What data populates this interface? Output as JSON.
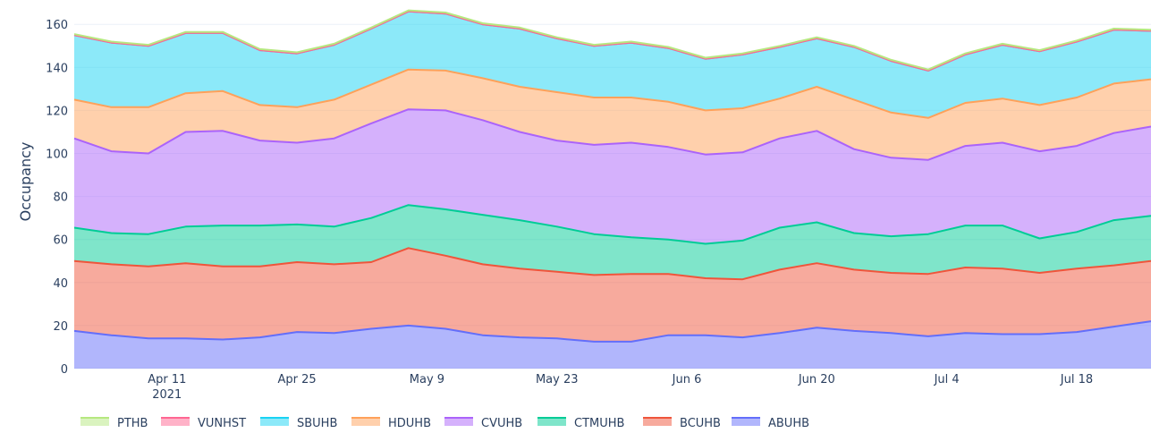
{
  "chart_data": {
    "type": "area",
    "stacked": true,
    "title": "",
    "xlabel": "",
    "ylabel": "Occupancy",
    "ylim": [
      0,
      168
    ],
    "xlim": [
      "2021-04-01",
      "2021-07-26"
    ],
    "yticks": [
      0,
      20,
      40,
      60,
      80,
      100,
      120,
      140,
      160
    ],
    "xticks": [
      {
        "date": "2021-04-11",
        "label": "Apr 11",
        "sublabel": "2021"
      },
      {
        "date": "2021-04-25",
        "label": "Apr 25"
      },
      {
        "date": "2021-05-09",
        "label": "May 9"
      },
      {
        "date": "2021-05-23",
        "label": "May 23"
      },
      {
        "date": "2021-06-06",
        "label": "Jun 6"
      },
      {
        "date": "2021-06-20",
        "label": "Jun 20"
      },
      {
        "date": "2021-07-04",
        "label": "Jul 4"
      },
      {
        "date": "2021-07-18",
        "label": "Jul 18"
      }
    ],
    "grid": true,
    "legend_position": "bottom",
    "x": [
      "2021-04-01",
      "2021-04-05",
      "2021-04-09",
      "2021-04-13",
      "2021-04-17",
      "2021-04-21",
      "2021-04-25",
      "2021-04-29",
      "2021-05-03",
      "2021-05-07",
      "2021-05-11",
      "2021-05-15",
      "2021-05-19",
      "2021-05-23",
      "2021-05-27",
      "2021-05-31",
      "2021-06-04",
      "2021-06-08",
      "2021-06-12",
      "2021-06-16",
      "2021-06-20",
      "2021-06-24",
      "2021-06-28",
      "2021-07-02",
      "2021-07-06",
      "2021-07-10",
      "2021-07-14",
      "2021-07-18",
      "2021-07-22",
      "2021-07-26"
    ],
    "series": [
      {
        "name": "ABUHB",
        "color": "#636efa",
        "values": [
          17.5,
          15.5,
          14,
          14,
          13.5,
          14.5,
          17,
          16.5,
          18.5,
          20,
          18.5,
          15.5,
          14.5,
          14,
          12.5,
          12.5,
          15.5,
          15.5,
          14.5,
          16.5,
          19,
          17.5,
          16.5,
          15,
          16.5,
          16,
          16,
          17,
          19.5,
          22
        ]
      },
      {
        "name": "BCUHB",
        "color": "#ef553b",
        "values": [
          32.5,
          33,
          33.5,
          35,
          34,
          33,
          32.5,
          32,
          31,
          36,
          34,
          33,
          32,
          31,
          31,
          31.5,
          28.5,
          26.5,
          27,
          29.5,
          30,
          28.5,
          28,
          29,
          30.5,
          30.5,
          28.5,
          29.5,
          28.5,
          28
        ]
      },
      {
        "name": "CTMUHB",
        "color": "#00cc96",
        "values": [
          15.5,
          14.5,
          15,
          17,
          19,
          19,
          17.5,
          17.5,
          20.5,
          20,
          21.5,
          23,
          22.5,
          21,
          19,
          17,
          16,
          16,
          18,
          19.5,
          19,
          17,
          17,
          18.5,
          19.5,
          20,
          16,
          17,
          21,
          21
        ]
      },
      {
        "name": "CVUHB",
        "color": "#ab63fa",
        "values": [
          41.5,
          38,
          37.5,
          44,
          44,
          39.5,
          38,
          41,
          44,
          44.5,
          46,
          44,
          41,
          40,
          41.5,
          44,
          43,
          41.5,
          41,
          41.5,
          42.5,
          39,
          36.5,
          34.5,
          37,
          38.5,
          40.5,
          40,
          40.5,
          41.5
        ]
      },
      {
        "name": "HDUHB",
        "color": "#ffa15a",
        "values": [
          18,
          20.5,
          21.5,
          18,
          18.5,
          16.5,
          16.5,
          18,
          18,
          18.5,
          18.5,
          19.5,
          21,
          22.5,
          22,
          21,
          21,
          20.5,
          20.5,
          18.5,
          20.5,
          23,
          21,
          19.5,
          20,
          20.5,
          21.5,
          22.5,
          23,
          22
        ]
      },
      {
        "name": "SBUHB",
        "color": "#19d3f3",
        "values": [
          30,
          30,
          28.5,
          28,
          27,
          25.5,
          25,
          25.5,
          26,
          27,
          26.5,
          25,
          27,
          25,
          24,
          25.5,
          25,
          24,
          25,
          24,
          22.5,
          24.5,
          24,
          22,
          22.5,
          25,
          25,
          26,
          25,
          22.5
        ]
      },
      {
        "name": "VUNHST",
        "color": "#ff6692",
        "values": [
          0,
          0,
          0,
          0,
          0,
          0,
          0,
          0,
          0,
          0,
          0,
          0,
          0,
          0,
          0,
          0,
          0,
          0,
          0,
          0,
          0,
          0,
          0,
          0,
          0,
          0,
          0,
          0,
          0,
          0
        ]
      },
      {
        "name": "PTHB",
        "color": "#b6e880",
        "values": [
          0.5,
          0.5,
          0.5,
          0.5,
          0.5,
          0.5,
          0.5,
          0.5,
          0.5,
          0.5,
          0.5,
          0.5,
          0.5,
          0.5,
          0.5,
          0.5,
          0.5,
          0.5,
          0.5,
          0.5,
          0.5,
          0.5,
          0.5,
          0.5,
          0.5,
          0.5,
          0.5,
          0.5,
          0.5,
          0.5
        ]
      }
    ]
  }
}
